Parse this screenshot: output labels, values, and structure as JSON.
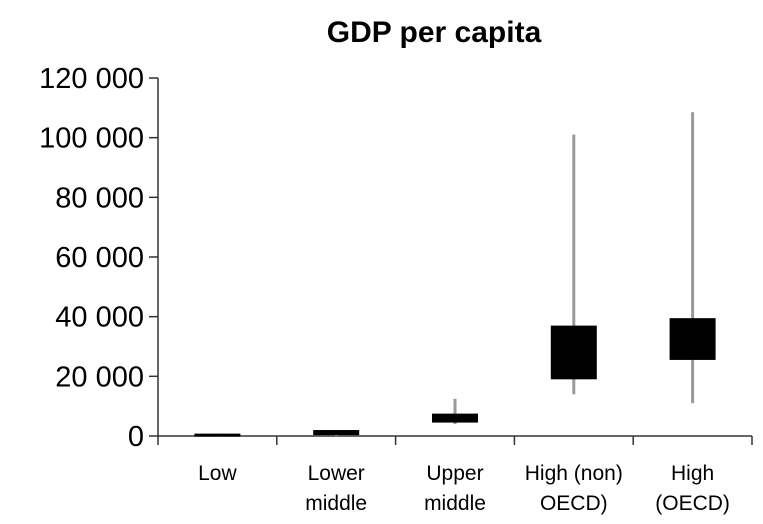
{
  "chart_data": {
    "type": "box",
    "title": "GDP per capita",
    "xlabel": "",
    "ylabel": "",
    "ylim": [
      0,
      120000
    ],
    "yticks": [
      0,
      20000,
      40000,
      60000,
      80000,
      100000,
      120000
    ],
    "ytick_labels": [
      "0",
      "20 000",
      "40 000",
      "60 000",
      "80 000",
      "100 000",
      "120 000"
    ],
    "grid": false,
    "legend": "none",
    "categories": [
      {
        "label_lines": [
          "Low"
        ],
        "min": 0,
        "q1": 0,
        "q3": 800,
        "max": 800
      },
      {
        "label_lines": [
          "Lower",
          "middle"
        ],
        "min": 0,
        "q1": 300,
        "q3": 2000,
        "max": 2000
      },
      {
        "label_lines": [
          "Upper",
          "middle"
        ],
        "min": 4000,
        "q1": 4500,
        "q3": 7500,
        "max": 12500
      },
      {
        "label_lines": [
          "High (non)",
          "OECD)"
        ],
        "min": 14000,
        "q1": 19000,
        "q3": 37000,
        "max": 101000
      },
      {
        "label_lines": [
          "High",
          "(OECD)"
        ],
        "min": 11000,
        "q1": 25500,
        "q3": 39500,
        "max": 108500
      }
    ]
  }
}
